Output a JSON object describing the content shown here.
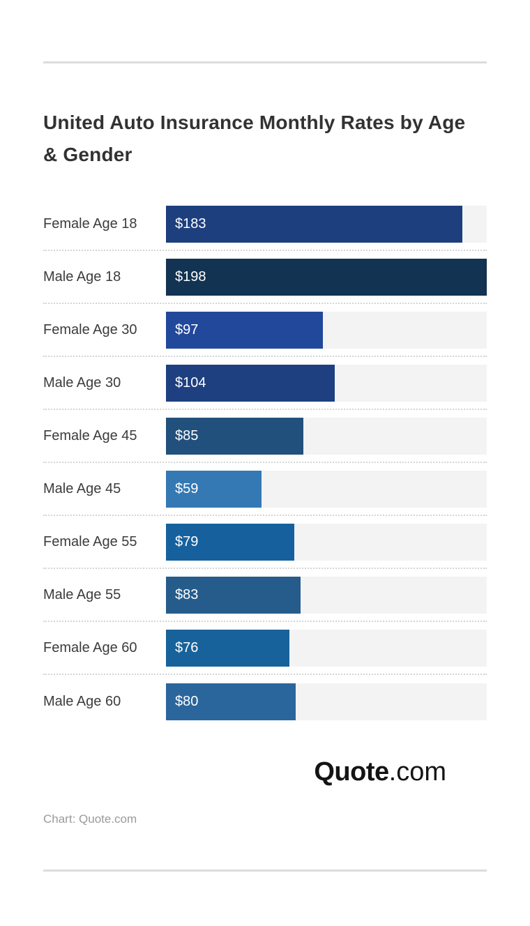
{
  "title": {
    "text": "United Auto Insurance Monthly Rates by Age & Gender"
  },
  "chart_data": {
    "type": "bar",
    "orientation": "horizontal",
    "title": "United Auto Insurance Monthly Rates by Age & Gender",
    "categories": [
      "Female Age 18",
      "Male Age 18",
      "Female Age 30",
      "Male Age 30",
      "Female Age 45",
      "Male Age 45",
      "Female Age 55",
      "Male Age 55",
      "Female Age 60",
      "Male Age 60"
    ],
    "values": [
      183,
      198,
      97,
      104,
      85,
      59,
      79,
      83,
      76,
      80
    ],
    "value_labels": [
      "$183",
      "$198",
      "$97",
      "$104",
      "$85",
      "$59",
      "$79",
      "$83",
      "$76",
      "$80"
    ],
    "bar_colors": [
      "#1E3F7E",
      "#123351",
      "#21489B",
      "#1E4080",
      "#22507D",
      "#3478B4",
      "#16619D",
      "#255C8C",
      "#17629A",
      "#2A669C"
    ],
    "xlabel": "",
    "ylabel": "",
    "xlim": [
      0,
      198
    ],
    "grid": false,
    "legend": false,
    "value_label_position": "inside-left",
    "value_label_color": "#ffffff",
    "track_color": "#f3f3f3"
  },
  "footer": {
    "logo_bold": "Quote",
    "logo_suffix": ".com",
    "caption": "Chart: Quote.com"
  }
}
